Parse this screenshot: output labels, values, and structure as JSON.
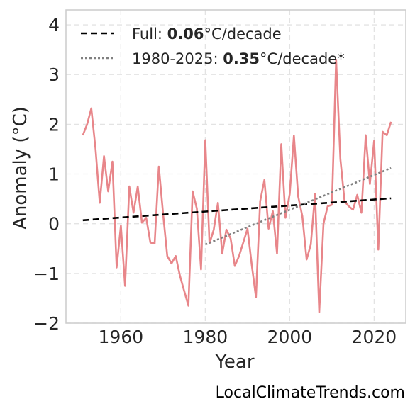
{
  "chart_data": {
    "type": "line",
    "xlabel": "Year",
    "ylabel": "Anomaly (°C)",
    "xlim": [
      1947,
      2027.5
    ],
    "ylim": [
      -2.0,
      4.3
    ],
    "x_ticks": [
      1960,
      1980,
      2000,
      2020
    ],
    "y_ticks": [
      -2,
      -1,
      0,
      1,
      2,
      3,
      4
    ],
    "y_tick_labels": [
      "−2",
      "−1",
      "0",
      "1",
      "2",
      "3",
      "4"
    ],
    "grid": true,
    "legend_position": "top-left",
    "series": [
      {
        "color": "#e8868a",
        "x": [
          1951,
          1952,
          1953,
          1954,
          1955,
          1956,
          1957,
          1958,
          1959,
          1960,
          1961,
          1962,
          1963,
          1964,
          1965,
          1966,
          1967,
          1968,
          1969,
          1970,
          1971,
          1972,
          1973,
          1974,
          1975,
          1976,
          1977,
          1978,
          1979,
          1980,
          1981,
          1982,
          1983,
          1984,
          1985,
          1986,
          1987,
          1988,
          1989,
          1990,
          1991,
          1992,
          1993,
          1994,
          1995,
          1996,
          1997,
          1998,
          1999,
          2000,
          2001,
          2002,
          2003,
          2004,
          2005,
          2006,
          2007,
          2008,
          2009,
          2010,
          2011,
          2012,
          2013,
          2014,
          2015,
          2016,
          2017,
          2018,
          2019,
          2020,
          2021,
          2022,
          2023,
          2024
        ],
        "values": [
          1.78,
          2.0,
          2.32,
          1.5,
          0.42,
          1.36,
          0.65,
          1.25,
          -0.88,
          -0.04,
          -1.25,
          0.75,
          0.22,
          0.75,
          0.02,
          0.12,
          -0.38,
          -0.4,
          1.15,
          0.2,
          -0.65,
          -0.8,
          -0.65,
          -1.05,
          -1.35,
          -1.65,
          0.65,
          0.3,
          -0.92,
          1.68,
          -0.4,
          -0.12,
          0.42,
          -0.6,
          -0.12,
          -0.3,
          -0.85,
          -0.65,
          -0.38,
          -0.1,
          -0.82,
          -1.48,
          0.45,
          0.88,
          -0.1,
          0.25,
          -0.6,
          1.6,
          0.12,
          0.6,
          1.77,
          0.55,
          0.15,
          -0.72,
          -0.42,
          0.6,
          -1.78,
          0.0,
          0.35,
          0.38,
          3.3,
          1.3,
          0.45,
          0.35,
          0.28,
          0.58,
          0.22,
          1.78,
          0.8,
          1.67,
          -0.52,
          1.85,
          1.78,
          2.05
        ]
      },
      {
        "name": "Full: 0.06°C/decade",
        "style": "dashed",
        "color": "#000000",
        "x": [
          1951,
          2024
        ],
        "values": [
          0.07,
          0.51
        ]
      },
      {
        "name": "1980-2025: 0.35°C/decade*",
        "style": "dotted",
        "color": "#808080",
        "x": [
          1980,
          2024
        ],
        "values": [
          -0.42,
          1.12
        ]
      }
    ],
    "legend": [
      {
        "prefix": "Full: ",
        "bold": "0.06",
        "suffix": "°C/decade"
      },
      {
        "prefix": "1980-2025: ",
        "bold": "0.35",
        "suffix": "°C/decade*"
      }
    ]
  },
  "credit": "LocalClimateTrends.com"
}
